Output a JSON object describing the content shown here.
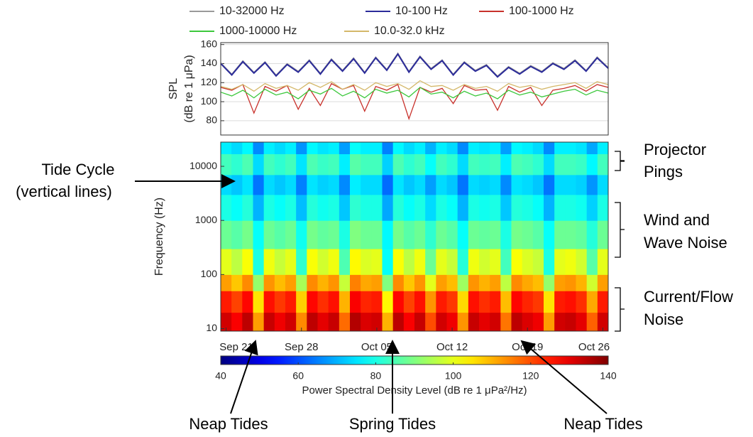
{
  "chart_data": [
    {
      "type": "line",
      "ylabel": [
        "SPL",
        "(dB re 1 μPa)"
      ],
      "ylim": [
        65,
        162
      ],
      "yticks": [
        80,
        100,
        120,
        140,
        160
      ],
      "grid": true,
      "series": [
        {
          "name": "10-32000 Hz",
          "color": "#9a9a9a",
          "values": [
            141,
            129,
            143,
            131,
            142,
            128,
            140,
            132,
            144,
            130,
            145,
            133,
            146,
            131,
            147,
            134,
            151,
            132,
            148,
            135,
            144,
            129,
            142,
            133,
            139,
            127,
            137,
            130,
            138,
            132,
            141,
            135,
            144,
            133,
            147,
            136
          ]
        },
        {
          "name": "10-100 Hz",
          "color": "#2b2b9a",
          "values": [
            140,
            128,
            142,
            130,
            141,
            127,
            139,
            131,
            143,
            129,
            144,
            132,
            145,
            130,
            146,
            133,
            150,
            131,
            147,
            134,
            143,
            128,
            141,
            132,
            138,
            126,
            136,
            129,
            137,
            131,
            140,
            134,
            143,
            132,
            146,
            135
          ]
        },
        {
          "name": "100-1000 Hz",
          "color": "#c8312b",
          "values": [
            115,
            112,
            118,
            88,
            116,
            111,
            117,
            92,
            114,
            96,
            119,
            113,
            117,
            90,
            116,
            112,
            118,
            82,
            115,
            110,
            114,
            98,
            117,
            112,
            113,
            91,
            116,
            110,
            115,
            96,
            112,
            114,
            117,
            111,
            118,
            115
          ]
        },
        {
          "name": "1000-10000 Hz",
          "color": "#3cc83c",
          "values": [
            110,
            106,
            112,
            104,
            113,
            107,
            110,
            103,
            112,
            108,
            114,
            106,
            111,
            104,
            113,
            109,
            112,
            105,
            115,
            108,
            110,
            104,
            111,
            106,
            109,
            103,
            112,
            107,
            110,
            105,
            108,
            111,
            113,
            107,
            112,
            109
          ]
        },
        {
          "name": "10.0-32.0 kHz",
          "color": "#d4b86a",
          "values": [
            116,
            113,
            118,
            111,
            119,
            114,
            117,
            112,
            120,
            115,
            121,
            113,
            118,
            112,
            120,
            116,
            119,
            113,
            122,
            116,
            117,
            112,
            118,
            114,
            116,
            111,
            119,
            115,
            117,
            113,
            116,
            118,
            120,
            114,
            121,
            118
          ]
        }
      ]
    },
    {
      "type": "heatmap",
      "ylabel": "Frequency (Hz)",
      "log_y": true,
      "ylim": [
        9,
        28000
      ],
      "yticks": [
        10,
        100,
        1000,
        10000
      ],
      "categories": [
        "Sep 21",
        null,
        null,
        null,
        null,
        null,
        null,
        "Sep 28",
        null,
        null,
        null,
        null,
        null,
        null,
        "Oct 05",
        null,
        null,
        null,
        null,
        null,
        null,
        "Oct 12",
        null,
        null,
        null,
        null,
        null,
        null,
        "Oct 19",
        null,
        null,
        null,
        null,
        null,
        null,
        "Oct 26"
      ],
      "y_bins": [
        9,
        20,
        50,
        100,
        300,
        1000,
        3000,
        7000,
        17000,
        28000
      ],
      "z": [
        [
          132,
          128,
          134,
          112,
          133,
          129,
          132,
          114,
          134,
          130,
          133,
          117,
          135,
          131,
          132,
          110,
          134,
          128,
          133,
          120,
          132,
          129,
          113,
          133,
          130,
          132,
          116,
          134,
          131,
          129,
          112,
          132,
          133,
          130,
          118,
          132
        ],
        [
          125,
          121,
          127,
          105,
          126,
          122,
          125,
          107,
          127,
          123,
          126,
          110,
          128,
          124,
          125,
          103,
          127,
          121,
          126,
          113,
          125,
          122,
          106,
          126,
          123,
          125,
          109,
          127,
          124,
          122,
          105,
          125,
          126,
          123,
          111,
          125
        ],
        [
          112,
          108,
          114,
          92,
          113,
          109,
          112,
          94,
          114,
          110,
          113,
          97,
          115,
          111,
          112,
          90,
          114,
          108,
          113,
          100,
          112,
          109,
          93,
          113,
          110,
          112,
          96,
          114,
          111,
          109,
          92,
          112,
          113,
          110,
          98,
          112
        ],
        [
          100,
          96,
          102,
          80,
          101,
          97,
          100,
          82,
          102,
          98,
          101,
          85,
          103,
          99,
          100,
          78,
          102,
          96,
          101,
          88,
          100,
          97,
          81,
          101,
          98,
          100,
          84,
          102,
          99,
          97,
          80,
          100,
          101,
          98,
          86,
          100
        ],
        [
          88,
          86,
          89,
          78,
          88,
          86,
          88,
          79,
          89,
          87,
          88,
          80,
          90,
          88,
          88,
          77,
          89,
          86,
          88,
          82,
          88,
          86,
          78,
          88,
          87,
          88,
          80,
          89,
          88,
          86,
          78,
          88,
          88,
          87,
          81,
          88
        ],
        [
          80,
          78,
          81,
          70,
          80,
          78,
          80,
          71,
          81,
          79,
          80,
          72,
          82,
          80,
          80,
          69,
          81,
          78,
          80,
          74,
          80,
          78,
          70,
          80,
          79,
          80,
          72,
          81,
          80,
          78,
          70,
          80,
          80,
          79,
          73,
          80
        ],
        [
          74,
          72,
          75,
          64,
          74,
          72,
          74,
          65,
          75,
          73,
          74,
          66,
          76,
          74,
          74,
          63,
          75,
          72,
          74,
          68,
          74,
          72,
          64,
          74,
          73,
          74,
          66,
          75,
          74,
          72,
          64,
          74,
          74,
          73,
          67,
          74
        ],
        [
          84,
          82,
          85,
          74,
          84,
          82,
          84,
          75,
          85,
          83,
          84,
          76,
          86,
          84,
          84,
          73,
          85,
          82,
          84,
          78,
          84,
          82,
          74,
          84,
          83,
          84,
          76,
          85,
          84,
          82,
          74,
          84,
          84,
          83,
          77,
          84
        ],
        [
          76,
          74,
          77,
          66,
          76,
          74,
          76,
          67,
          77,
          75,
          76,
          68,
          78,
          76,
          76,
          65,
          77,
          74,
          76,
          70,
          76,
          74,
          66,
          76,
          75,
          76,
          68,
          77,
          76,
          74,
          66,
          76,
          76,
          75,
          69,
          76
        ]
      ],
      "colormap": "jet",
      "colorbar": {
        "label": "Power Spectral Density Level (dB re 1 μPa²/Hz)",
        "clim": [
          40,
          140
        ],
        "ticks": [
          40,
          60,
          80,
          100,
          120,
          140
        ]
      }
    }
  ],
  "annotations": {
    "tide_cycle": [
      "Tide Cycle",
      "(vertical lines)"
    ],
    "projector": [
      "Projector",
      "Pings"
    ],
    "wind": [
      "Wind and",
      "Wave Noise"
    ],
    "current": [
      "Current/Flow",
      "Noise"
    ],
    "neap_left": "Neap Tides",
    "spring": "Spring Tides",
    "neap_right": "Neap Tides"
  }
}
